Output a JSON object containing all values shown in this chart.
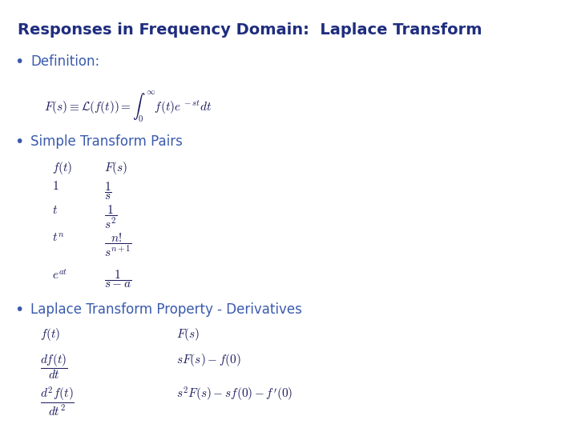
{
  "title": "Responses in Frequency Domain:  Laplace Transform",
  "bg_color": "#ffffff",
  "title_color": "#1f2d7e",
  "bullet_color": "#3a5aad",
  "math_color": "#1a1a5e",
  "bullet1": "Definition:",
  "formula1": "$F(s) \\equiv \\mathcal{L}(f(t)) = \\int_0^{\\infty} f(t)e^{\\,-st}dt$",
  "bullet2": "Simple Transform Pairs",
  "bullet3": "Laplace Transform Property - Derivatives",
  "table_header_ft": "$f(t)$",
  "table_header_Fs": "$F(s)$",
  "table_rows_ft": [
    "$1$",
    "$t$",
    "$t^n$",
    "$e^{at}$"
  ],
  "table_rows_Fs": [
    "$\\dfrac{1}{s}$",
    "$\\dfrac{1}{s^2}$",
    "$\\dfrac{n!}{s^{n+1}}$",
    "$\\dfrac{1}{s-a}$"
  ],
  "deriv_ft": [
    "$f(t)$",
    "$\\dfrac{df(t)}{dt}$",
    "$\\dfrac{d^2f(t)}{dt^2}$"
  ],
  "deriv_Fs": [
    "$F(s)$",
    "$sF(s) - f(0)$",
    "$s^2F(s) - sf(0) - f'(0)$"
  ]
}
